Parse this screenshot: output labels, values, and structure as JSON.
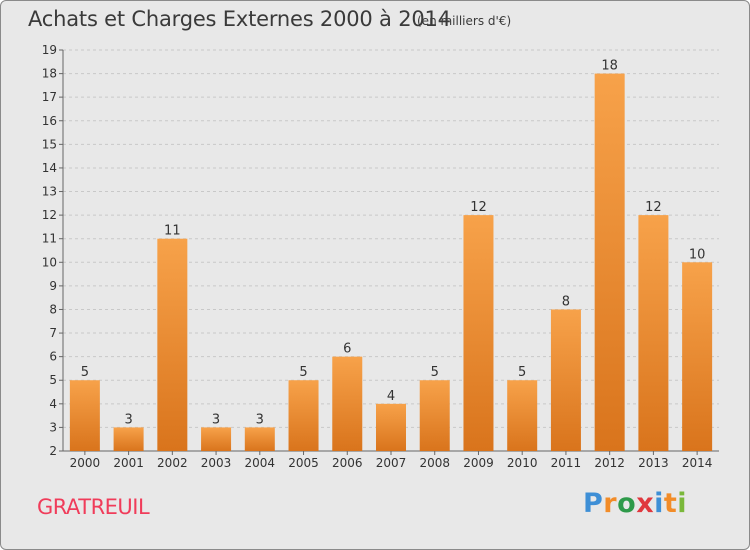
{
  "chart_data": {
    "type": "bar",
    "title": "Achats et Charges Externes 2000 à 2014",
    "subtitle": "(en milliers d'€)",
    "categories": [
      "2000",
      "2001",
      "2002",
      "2003",
      "2004",
      "2005",
      "2006",
      "2007",
      "2008",
      "2009",
      "2010",
      "2011",
      "2012",
      "2013",
      "2014"
    ],
    "values": [
      5,
      3,
      11,
      3,
      3,
      5,
      6,
      4,
      5,
      12,
      5,
      8,
      18,
      12,
      10
    ],
    "ylim": [
      2,
      19
    ],
    "yticks": [
      2,
      3,
      4,
      5,
      6,
      7,
      8,
      9,
      10,
      11,
      12,
      13,
      14,
      15,
      16,
      17,
      18,
      19
    ],
    "xlabel": "",
    "ylabel": "",
    "grid": "horizontal-dashed",
    "bar_color_top": "#f7a24a",
    "bar_color_bottom": "#d9741c"
  },
  "footer": {
    "place_name": "GRATREUIL",
    "logo": {
      "letters": [
        "P",
        "r",
        "o",
        "x",
        "i",
        "t",
        "i"
      ],
      "colors": [
        "#3e8fd6",
        "#f28c28",
        "#2e9a4a",
        "#e0383e",
        "#3e8fd6",
        "#f28c28",
        "#7ab83a"
      ]
    }
  }
}
